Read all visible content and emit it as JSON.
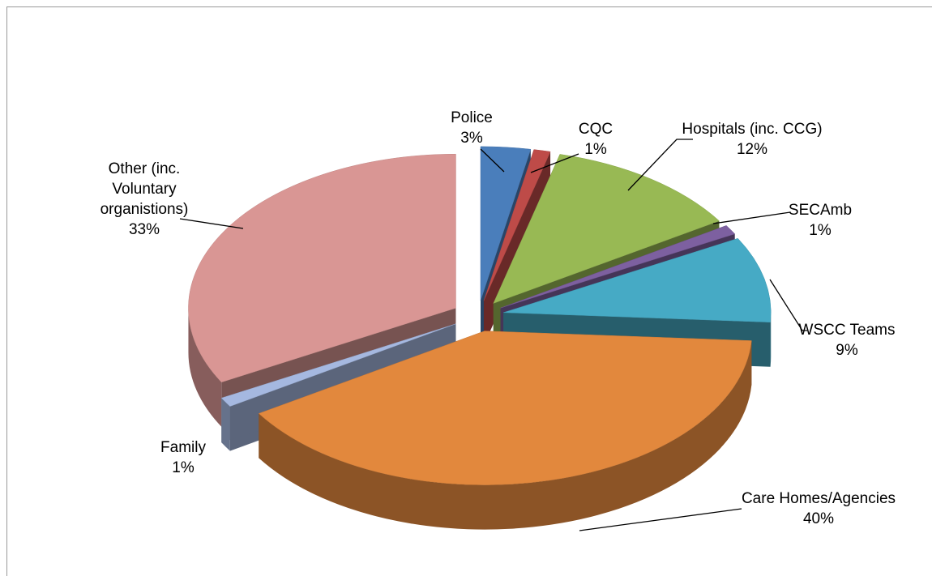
{
  "chart_data": {
    "type": "pie",
    "view": "3d-exploded",
    "categories": [
      "Police",
      "CQC",
      "Hospitals (inc. CCG)",
      "SECAmb",
      "WSCC Teams",
      "Care Homes/Agencies",
      "Family",
      "Other (inc. Voluntary organistions)"
    ],
    "values": [
      3,
      1,
      12,
      1,
      9,
      40,
      1,
      33
    ],
    "value_labels": [
      "3%",
      "1%",
      "12%",
      "1%",
      "9%",
      "40%",
      "1%",
      "33%"
    ],
    "colors": [
      "#4a7ebb",
      "#be4b48",
      "#98b954",
      "#7d60a0",
      "#46aac5",
      "#e2883d",
      "#a5b8e0",
      "#d99694"
    ]
  }
}
